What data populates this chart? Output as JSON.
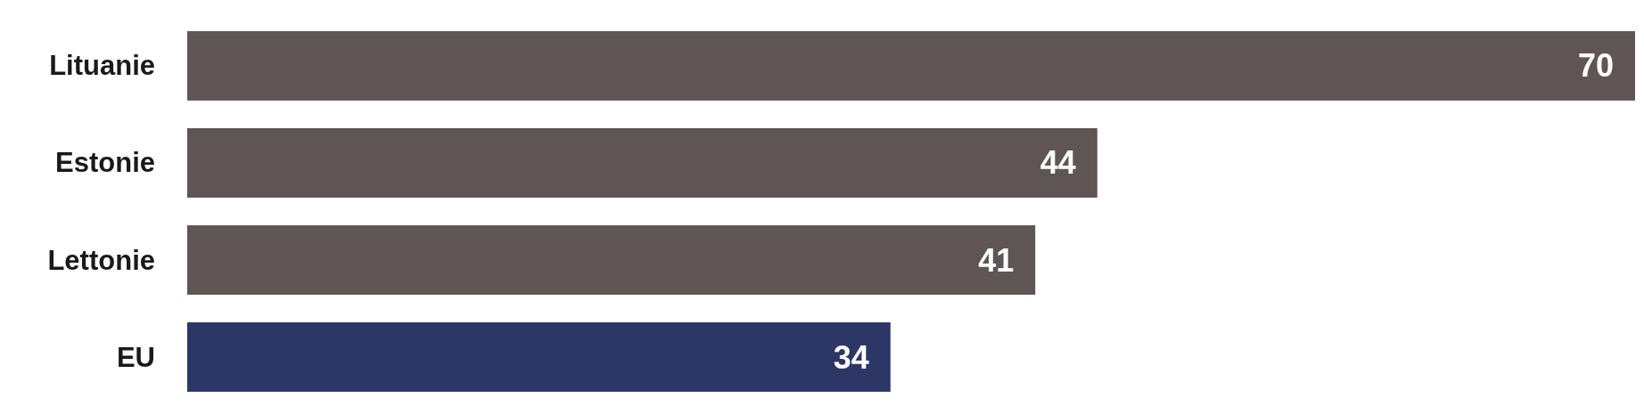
{
  "chart_data": {
    "type": "bar",
    "orientation": "horizontal",
    "categories": [
      "Lituanie",
      "Estonie",
      "Lettonie",
      "EU"
    ],
    "values": [
      70,
      44,
      41,
      34
    ],
    "colors": [
      "#605555",
      "#605555",
      "#605555",
      "#2c3765"
    ],
    "data_labels": true
  }
}
